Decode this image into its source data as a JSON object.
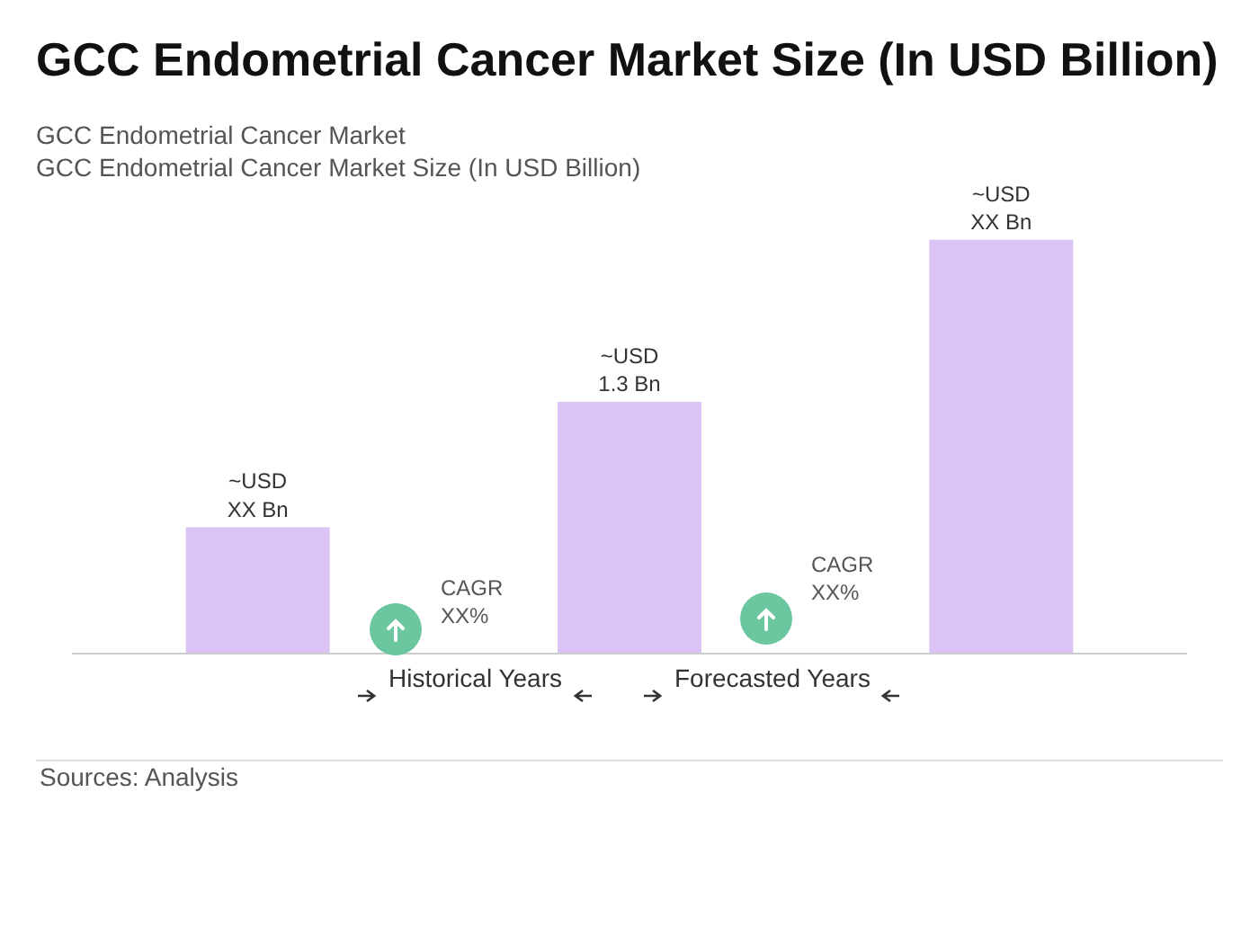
{
  "chart_data": {
    "type": "bar",
    "title": "GCC Endometrial Cancer Market Size (In USD Billion)",
    "subtitle": "GCC Endometrial Cancer Market\nGCC Endometrial Cancer Market Size (In USD Billion)",
    "categories": [
      null,
      null,
      null
    ],
    "values": [
      0.65,
      1.3,
      2.14
    ],
    "color": "#dcc3f6",
    "value_labels": [
      "~USD\nXX Bn",
      "~USD\n1.3 Bn",
      "~USD\nXX Bn"
    ],
    "annotations": [
      "CAGR\nXX%",
      "CAGR\nXX%",
      "Historical Years",
      "Forecasted Years",
      "Sources: Analysis"
    ],
    "legend": false
  }
}
